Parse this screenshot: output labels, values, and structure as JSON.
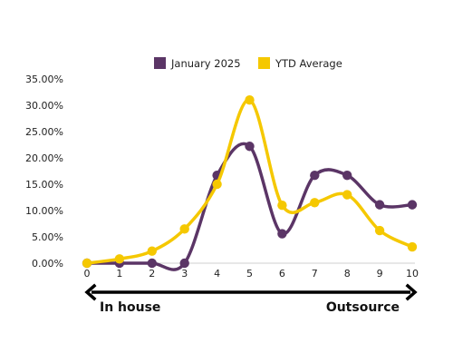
{
  "chart_data": {
    "type": "line",
    "title": "",
    "xlabel": "",
    "ylabel": "",
    "x": [
      0,
      1,
      2,
      3,
      4,
      5,
      6,
      7,
      8,
      9,
      10
    ],
    "ylim": [
      0,
      0.35
    ],
    "y_ticks": [
      "0.00%",
      "5.00%",
      "10.00%",
      "15.00%",
      "20.00%",
      "25.00%",
      "30.00%",
      "35.00%"
    ],
    "legend_position": "top",
    "grid": false,
    "smooth": true,
    "series": [
      {
        "name": "January 2025",
        "color": "#5b3566",
        "values": [
          0.0,
          0.0,
          0.0,
          0.0,
          0.167,
          0.222,
          0.056,
          0.167,
          0.167,
          0.111,
          0.111
        ]
      },
      {
        "name": "YTD Average",
        "color": "#f5c800",
        "values": [
          0.0,
          0.008,
          0.023,
          0.065,
          0.15,
          0.31,
          0.11,
          0.115,
          0.13,
          0.062,
          0.031
        ]
      }
    ],
    "annotations": {
      "left_label": "In house",
      "right_label": "Outsource",
      "arrow": "double-headed"
    }
  }
}
